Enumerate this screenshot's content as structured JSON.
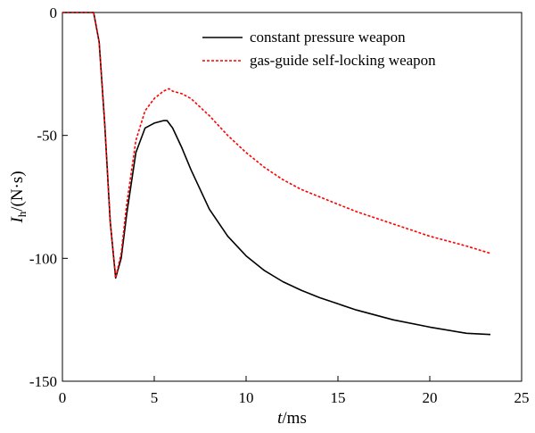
{
  "chart_data": {
    "type": "line",
    "title": "",
    "xlabel": {
      "symbol": "t",
      "unit": "/ms"
    },
    "ylabel": {
      "symbol": "I",
      "subscript": "h",
      "unit": "/(N·s)"
    },
    "xlim": [
      0,
      25
    ],
    "ylim": [
      -150,
      0
    ],
    "xticks": [
      0,
      5,
      10,
      15,
      20,
      25
    ],
    "yticks": [
      0,
      -50,
      -100,
      -150
    ],
    "grid": false,
    "legend_position": "top-right",
    "series": [
      {
        "name": "constant pressure weapon",
        "color": "#000000",
        "dash": "solid",
        "x": [
          0,
          1.7,
          2.0,
          2.3,
          2.6,
          2.9,
          3.2,
          3.5,
          4.0,
          4.5,
          5.0,
          5.5,
          5.7,
          6.0,
          6.5,
          7.0,
          8.0,
          9.0,
          10.0,
          11.0,
          12.0,
          13.0,
          14.0,
          15.0,
          16.0,
          18.0,
          20.0,
          22.0,
          23.3
        ],
        "y": [
          0,
          0,
          -12,
          -45,
          -85,
          -108,
          -100,
          -82,
          -57,
          -47,
          -45,
          -44,
          -44,
          -47,
          -55,
          -64,
          -80,
          -91,
          -99,
          -105,
          -109.5,
          -113,
          -116,
          -118.5,
          -121,
          -125,
          -128,
          -130.5,
          -131
        ]
      },
      {
        "name": "gas-guide self-locking weapon",
        "color": "#ff0000",
        "dash": "dashed",
        "x": [
          0,
          1.7,
          2.0,
          2.3,
          2.6,
          2.9,
          3.2,
          3.5,
          4.0,
          4.5,
          5.0,
          5.5,
          5.8,
          6.0,
          6.5,
          7.0,
          8.0,
          9.0,
          10.0,
          11.0,
          12.0,
          13.0,
          14.0,
          15.0,
          16.0,
          18.0,
          20.0,
          22.0,
          23.3
        ],
        "y": [
          0,
          0,
          -12,
          -45,
          -85,
          -108,
          -98,
          -78,
          -52,
          -40,
          -35,
          -32,
          -31,
          -32,
          -33,
          -35,
          -42,
          -50,
          -57,
          -63,
          -68,
          -72,
          -75,
          -78,
          -81,
          -86,
          -91,
          -95,
          -98
        ]
      }
    ]
  }
}
